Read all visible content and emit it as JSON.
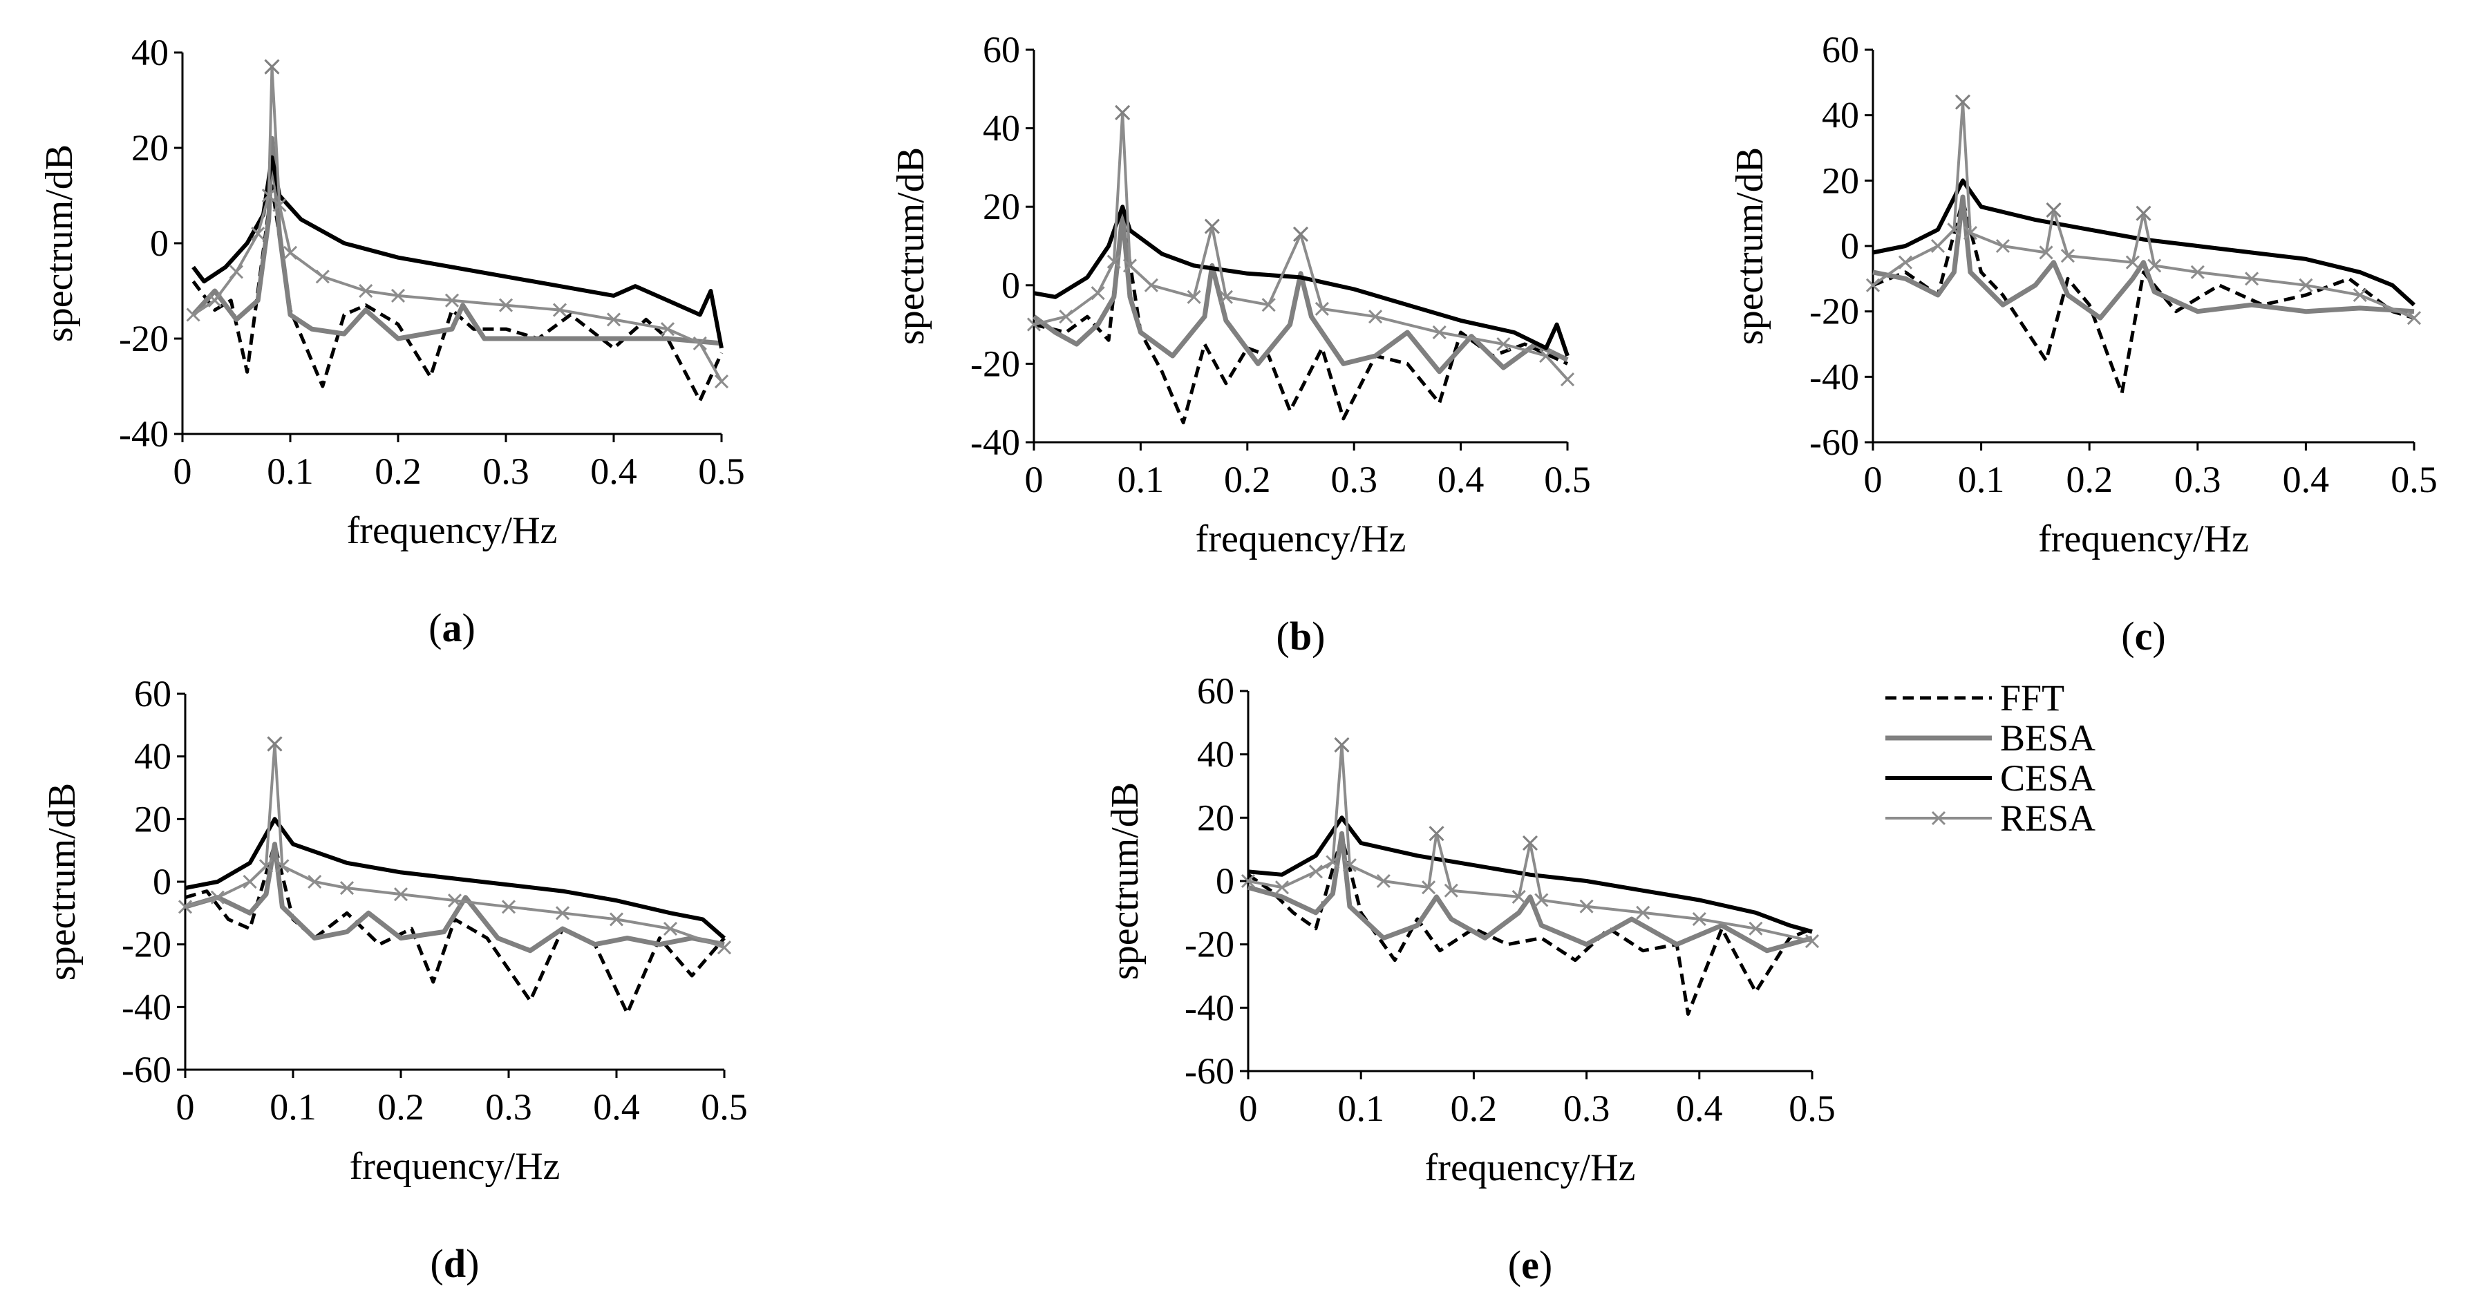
{
  "figure": {
    "legend": [
      {
        "name": "FFT",
        "color": "#000000",
        "style": "dashed"
      },
      {
        "name": "BESA",
        "color": "#808080",
        "style": "solid-thick"
      },
      {
        "name": "CESA",
        "color": "#000000",
        "style": "solid"
      },
      {
        "name": "RESA",
        "color": "#8c8c8c",
        "style": "solid-marker-x"
      }
    ]
  },
  "chart_data": [
    {
      "type": "line",
      "panel": "a",
      "label_prefix": "(",
      "label_letter": "a",
      "label_suffix": ")",
      "xlabel": "frequency/Hz",
      "ylabel": "spectrum/dB",
      "xlim": [
        0,
        0.5
      ],
      "ylim": [
        -40,
        40
      ],
      "xticks": [
        0,
        0.1,
        0.2,
        0.3,
        0.4,
        0.5
      ],
      "yticks": [
        -40,
        -20,
        0,
        20,
        40
      ],
      "peaks": [
        {
          "freq": 0.083,
          "value": 37
        }
      ],
      "series": [
        {
          "name": "FFT",
          "x": [
            0.01,
            0.03,
            0.045,
            0.06,
            0.083,
            0.1,
            0.13,
            0.15,
            0.17,
            0.2,
            0.23,
            0.25,
            0.27,
            0.3,
            0.33,
            0.36,
            0.4,
            0.43,
            0.45,
            0.48,
            0.5
          ],
          "y": [
            -8,
            -14,
            -12,
            -27,
            12,
            -14,
            -30,
            -15,
            -13,
            -17,
            -28,
            -14,
            -18,
            -18,
            -20,
            -15,
            -22,
            -16,
            -20,
            -33,
            -23
          ]
        },
        {
          "name": "BESA",
          "x": [
            0.01,
            0.03,
            0.05,
            0.07,
            0.08,
            0.083,
            0.09,
            0.1,
            0.12,
            0.15,
            0.17,
            0.2,
            0.25,
            0.26,
            0.28,
            0.32,
            0.35,
            0.4,
            0.45,
            0.5
          ],
          "y": [
            -15,
            -10,
            -16,
            -12,
            5,
            22,
            2,
            -15,
            -18,
            -19,
            -14,
            -20,
            -18,
            -13,
            -20,
            -20,
            -20,
            -20,
            -20,
            -21
          ]
        },
        {
          "name": "CESA",
          "x": [
            0.01,
            0.02,
            0.04,
            0.06,
            0.075,
            0.083,
            0.09,
            0.11,
            0.15,
            0.2,
            0.25,
            0.3,
            0.35,
            0.4,
            0.42,
            0.45,
            0.48,
            0.49,
            0.5
          ],
          "y": [
            -5,
            -8,
            -5,
            0,
            6,
            18,
            10,
            5,
            0,
            -3,
            -5,
            -7,
            -9,
            -11,
            -9,
            -12,
            -15,
            -10,
            -22
          ]
        },
        {
          "name": "RESA",
          "x": [
            0.01,
            0.03,
            0.05,
            0.07,
            0.08,
            0.083,
            0.09,
            0.1,
            0.13,
            0.17,
            0.2,
            0.25,
            0.3,
            0.35,
            0.4,
            0.45,
            0.48,
            0.5
          ],
          "y": [
            -15,
            -12,
            -6,
            2,
            10,
            37,
            8,
            -2,
            -7,
            -10,
            -11,
            -12,
            -13,
            -14,
            -16,
            -18,
            -21,
            -29
          ]
        }
      ]
    },
    {
      "type": "line",
      "panel": "b",
      "label_prefix": "(",
      "label_letter": "b",
      "label_suffix": ")",
      "xlabel": "frequency/Hz",
      "ylabel": "spectrum/dB",
      "xlim": [
        0,
        0.5
      ],
      "ylim": [
        -40,
        60
      ],
      "xticks": [
        0,
        0.1,
        0.2,
        0.3,
        0.4,
        0.5
      ],
      "yticks": [
        -40,
        -20,
        0,
        20,
        40,
        60
      ],
      "peaks": [
        {
          "freq": 0.083,
          "value": 44
        },
        {
          "freq": 0.167,
          "value": 15
        },
        {
          "freq": 0.25,
          "value": 13
        }
      ],
      "series": [
        {
          "name": "FFT",
          "x": [
            0,
            0.03,
            0.05,
            0.07,
            0.083,
            0.1,
            0.12,
            0.14,
            0.16,
            0.18,
            0.2,
            0.22,
            0.24,
            0.27,
            0.29,
            0.32,
            0.35,
            0.38,
            0.4,
            0.43,
            0.46,
            0.5
          ],
          "y": [
            -10,
            -12,
            -8,
            -14,
            18,
            -12,
            -22,
            -35,
            -15,
            -25,
            -16,
            -18,
            -32,
            -16,
            -34,
            -18,
            -20,
            -30,
            -12,
            -18,
            -15,
            -20
          ]
        },
        {
          "name": "BESA",
          "x": [
            0,
            0.02,
            0.04,
            0.06,
            0.075,
            0.083,
            0.09,
            0.1,
            0.13,
            0.16,
            0.167,
            0.18,
            0.21,
            0.24,
            0.25,
            0.26,
            0.29,
            0.32,
            0.35,
            0.38,
            0.41,
            0.44,
            0.47,
            0.5
          ],
          "y": [
            -8,
            -12,
            -15,
            -10,
            -3,
            18,
            -3,
            -12,
            -18,
            -8,
            5,
            -9,
            -20,
            -10,
            3,
            -8,
            -20,
            -18,
            -12,
            -22,
            -13,
            -21,
            -15,
            -19
          ]
        },
        {
          "name": "CESA",
          "x": [
            0,
            0.02,
            0.05,
            0.07,
            0.083,
            0.09,
            0.12,
            0.15,
            0.2,
            0.25,
            0.3,
            0.35,
            0.4,
            0.45,
            0.48,
            0.49,
            0.5
          ],
          "y": [
            -2,
            -3,
            2,
            10,
            20,
            14,
            8,
            5,
            3,
            2,
            -1,
            -5,
            -9,
            -12,
            -16,
            -10,
            -18
          ]
        },
        {
          "name": "RESA",
          "x": [
            0,
            0.03,
            0.06,
            0.075,
            0.083,
            0.09,
            0.11,
            0.15,
            0.167,
            0.18,
            0.22,
            0.25,
            0.27,
            0.32,
            0.38,
            0.44,
            0.48,
            0.5
          ],
          "y": [
            -10,
            -8,
            -2,
            6,
            44,
            5,
            0,
            -3,
            15,
            -3,
            -5,
            13,
            -6,
            -8,
            -12,
            -15,
            -18,
            -24
          ]
        }
      ]
    },
    {
      "type": "line",
      "panel": "c",
      "label_prefix": "(",
      "label_letter": "c",
      "label_suffix": ")",
      "xlabel": "frequency/Hz",
      "ylabel": "spectrum/dB",
      "xlim": [
        0,
        0.5
      ],
      "ylim": [
        -60,
        60
      ],
      "xticks": [
        0,
        0.1,
        0.2,
        0.3,
        0.4,
        0.5
      ],
      "yticks": [
        -60,
        -40,
        -20,
        0,
        20,
        40,
        60
      ],
      "peaks": [
        {
          "freq": 0.083,
          "value": 44
        },
        {
          "freq": 0.167,
          "value": 11
        },
        {
          "freq": 0.25,
          "value": 10
        }
      ],
      "series": [
        {
          "name": "FFT",
          "x": [
            0,
            0.03,
            0.06,
            0.083,
            0.1,
            0.12,
            0.16,
            0.18,
            0.2,
            0.23,
            0.25,
            0.28,
            0.32,
            0.36,
            0.4,
            0.44,
            0.48,
            0.5
          ],
          "y": [
            -12,
            -8,
            -15,
            14,
            -8,
            -15,
            -35,
            -10,
            -18,
            -45,
            -8,
            -20,
            -12,
            -18,
            -15,
            -10,
            -20,
            -22
          ]
        },
        {
          "name": "BESA",
          "x": [
            0,
            0.03,
            0.06,
            0.075,
            0.083,
            0.09,
            0.12,
            0.15,
            0.167,
            0.18,
            0.21,
            0.24,
            0.25,
            0.26,
            0.3,
            0.35,
            0.4,
            0.45,
            0.5
          ],
          "y": [
            -8,
            -10,
            -15,
            -8,
            15,
            -8,
            -18,
            -12,
            -5,
            -15,
            -22,
            -10,
            -5,
            -14,
            -20,
            -18,
            -20,
            -19,
            -20
          ]
        },
        {
          "name": "CESA",
          "x": [
            0,
            0.03,
            0.06,
            0.083,
            0.1,
            0.15,
            0.2,
            0.25,
            0.3,
            0.35,
            0.4,
            0.45,
            0.48,
            0.5
          ],
          "y": [
            -2,
            0,
            5,
            20,
            12,
            8,
            5,
            2,
            0,
            -2,
            -4,
            -8,
            -12,
            -18
          ]
        },
        {
          "name": "RESA",
          "x": [
            0,
            0.03,
            0.06,
            0.075,
            0.083,
            0.09,
            0.12,
            0.16,
            0.167,
            0.18,
            0.24,
            0.25,
            0.26,
            0.3,
            0.35,
            0.4,
            0.45,
            0.5
          ],
          "y": [
            -12,
            -5,
            0,
            5,
            44,
            4,
            0,
            -2,
            11,
            -3,
            -5,
            10,
            -6,
            -8,
            -10,
            -12,
            -15,
            -22
          ]
        }
      ]
    },
    {
      "type": "line",
      "panel": "d",
      "label_prefix": "(",
      "label_letter": "d",
      "label_suffix": ")",
      "xlabel": "frequency/Hz",
      "ylabel": "spectrum/dB",
      "xlim": [
        0,
        0.5
      ],
      "ylim": [
        -60,
        60
      ],
      "xticks": [
        0,
        0.1,
        0.2,
        0.3,
        0.4,
        0.5
      ],
      "yticks": [
        -60,
        -40,
        -20,
        0,
        20,
        40,
        60
      ],
      "peaks": [
        {
          "freq": 0.083,
          "value": 44
        }
      ],
      "series": [
        {
          "name": "FFT",
          "x": [
            0,
            0.02,
            0.04,
            0.06,
            0.083,
            0.1,
            0.12,
            0.15,
            0.18,
            0.21,
            0.23,
            0.25,
            0.28,
            0.32,
            0.35,
            0.38,
            0.41,
            0.44,
            0.47,
            0.5
          ],
          "y": [
            -5,
            -3,
            -12,
            -15,
            12,
            -12,
            -18,
            -10,
            -20,
            -15,
            -32,
            -12,
            -18,
            -38,
            -15,
            -20,
            -42,
            -18,
            -30,
            -18
          ]
        },
        {
          "name": "BESA",
          "x": [
            0,
            0.03,
            0.06,
            0.075,
            0.083,
            0.09,
            0.12,
            0.15,
            0.17,
            0.2,
            0.24,
            0.26,
            0.29,
            0.32,
            0.35,
            0.38,
            0.41,
            0.44,
            0.47,
            0.5
          ],
          "y": [
            -8,
            -5,
            -10,
            -4,
            12,
            -8,
            -18,
            -16,
            -10,
            -18,
            -16,
            -5,
            -18,
            -22,
            -15,
            -20,
            -18,
            -20,
            -18,
            -20
          ]
        },
        {
          "name": "CESA",
          "x": [
            0,
            0.03,
            0.06,
            0.083,
            0.1,
            0.15,
            0.2,
            0.25,
            0.3,
            0.35,
            0.4,
            0.45,
            0.48,
            0.5
          ],
          "y": [
            -2,
            0,
            6,
            20,
            12,
            6,
            3,
            1,
            -1,
            -3,
            -6,
            -10,
            -12,
            -18
          ]
        },
        {
          "name": "RESA",
          "x": [
            0,
            0.03,
            0.06,
            0.075,
            0.083,
            0.09,
            0.12,
            0.15,
            0.2,
            0.25,
            0.3,
            0.35,
            0.4,
            0.45,
            0.5
          ],
          "y": [
            -8,
            -5,
            0,
            5,
            44,
            5,
            0,
            -2,
            -4,
            -6,
            -8,
            -10,
            -12,
            -15,
            -21
          ]
        }
      ]
    },
    {
      "type": "line",
      "panel": "e",
      "label_prefix": "(",
      "label_letter": "e",
      "label_suffix": ")",
      "xlabel": "frequency/Hz",
      "ylabel": "spectrum/dB",
      "xlim": [
        0,
        0.5
      ],
      "ylim": [
        -60,
        60
      ],
      "xticks": [
        0,
        0.1,
        0.2,
        0.3,
        0.4,
        0.5
      ],
      "yticks": [
        -60,
        -40,
        -20,
        0,
        20,
        40,
        60
      ],
      "peaks": [
        {
          "freq": 0.083,
          "value": 43
        },
        {
          "freq": 0.167,
          "value": 15
        },
        {
          "freq": 0.25,
          "value": 12
        }
      ],
      "series": [
        {
          "name": "FFT",
          "x": [
            0,
            0.02,
            0.04,
            0.06,
            0.083,
            0.1,
            0.13,
            0.15,
            0.17,
            0.2,
            0.23,
            0.26,
            0.29,
            0.32,
            0.35,
            0.38,
            0.39,
            0.42,
            0.45,
            0.48,
            0.5
          ],
          "y": [
            2,
            -3,
            -10,
            -15,
            14,
            -10,
            -25,
            -12,
            -22,
            -15,
            -20,
            -18,
            -25,
            -15,
            -22,
            -20,
            -42,
            -15,
            -35,
            -18,
            -15
          ]
        },
        {
          "name": "BESA",
          "x": [
            0,
            0.03,
            0.06,
            0.075,
            0.083,
            0.09,
            0.12,
            0.15,
            0.167,
            0.18,
            0.21,
            0.24,
            0.25,
            0.26,
            0.3,
            0.34,
            0.38,
            0.42,
            0.46,
            0.5
          ],
          "y": [
            -2,
            -5,
            -10,
            -4,
            15,
            -8,
            -18,
            -14,
            -5,
            -12,
            -18,
            -10,
            -5,
            -14,
            -20,
            -12,
            -20,
            -14,
            -22,
            -18
          ]
        },
        {
          "name": "CESA",
          "x": [
            0,
            0.03,
            0.06,
            0.083,
            0.1,
            0.15,
            0.2,
            0.25,
            0.3,
            0.35,
            0.4,
            0.45,
            0.48,
            0.5
          ],
          "y": [
            3,
            2,
            8,
            20,
            12,
            8,
            5,
            2,
            0,
            -3,
            -6,
            -10,
            -14,
            -16
          ]
        },
        {
          "name": "RESA",
          "x": [
            0,
            0.03,
            0.06,
            0.075,
            0.083,
            0.09,
            0.12,
            0.16,
            0.167,
            0.18,
            0.24,
            0.25,
            0.26,
            0.3,
            0.35,
            0.4,
            0.45,
            0.5
          ],
          "y": [
            0,
            -2,
            3,
            6,
            43,
            5,
            0,
            -2,
            15,
            -3,
            -5,
            12,
            -6,
            -8,
            -10,
            -12,
            -15,
            -19
          ]
        }
      ]
    }
  ]
}
